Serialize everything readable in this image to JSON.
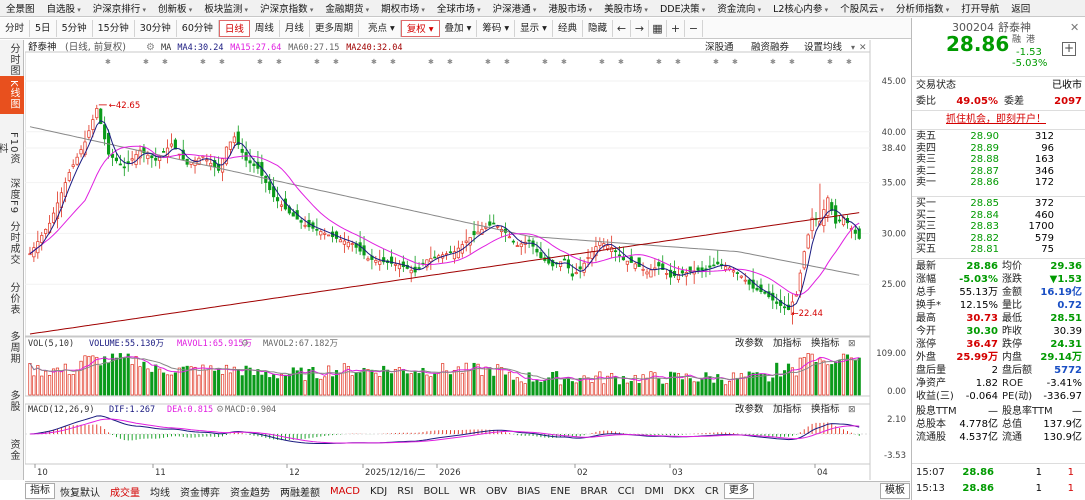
{
  "menu": [
    "全景图",
    "自选股",
    "沪深京排行",
    "创新板",
    "板块监测",
    "沪深京指数",
    "金融期货",
    "期权市场",
    "全球市场",
    "沪深港通",
    "港股市场",
    "美股市场",
    "DDE决策",
    "资金流向",
    "L2核心内参",
    "个股风云",
    "分析师指数",
    "打开导航",
    "返回"
  ],
  "toolbar": {
    "periods": [
      "分时",
      "5日",
      "5分钟",
      "15分钟",
      "30分钟",
      "60分钟",
      "日线",
      "周线",
      "月线",
      "更多周期"
    ],
    "active_period": "日线",
    "right_items": [
      "亮点",
      "复权",
      "叠加",
      "筹码",
      "显示",
      "经典",
      "隐藏"
    ],
    "active_right": "复权"
  },
  "left_tabs": [
    "分时图",
    "K线图",
    "F10资料",
    "深度F9",
    "分时成交",
    "分价表",
    "多周期",
    "多股",
    "资金"
  ],
  "chart_header": {
    "name": "舒泰神",
    "period_note": "(日线, 前复权)",
    "ma": [
      {
        "label": "MA",
        "value": "",
        "color": "#333333"
      },
      {
        "label": "MA4:",
        "value": "30.24",
        "color": "#1a1a80"
      },
      {
        "label": "MA15:",
        "value": "27.64",
        "color": "#e020e0"
      },
      {
        "label": "MA60:",
        "value": "27.15",
        "color": "#666666"
      },
      {
        "label": "MA240:",
        "value": "32.04",
        "color": "#a00000"
      }
    ],
    "buttons": [
      "深股通",
      "融资融券",
      "设置均线"
    ]
  },
  "price_axis": [
    "45.00",
    "40.00",
    "38.40",
    "35.00",
    "30.00",
    "25.00"
  ],
  "annotations": {
    "high": "42.65",
    "low": "22.44"
  },
  "vol": {
    "label": "VOL(5,10)",
    "volume_label": "VOLUME:",
    "volume_value": "55.130万",
    "mavol1_label": "MAVOL1:",
    "mavol1_value": "65.915万",
    "mavol2_label": "MAVOL2:",
    "mavol2_value": "67.182万",
    "buttons": [
      "改参数",
      "加指标",
      "换指标"
    ],
    "axis": [
      "109.00",
      "0.00"
    ]
  },
  "macd": {
    "label": "MACD(12,26,9)",
    "dif_label": "DIF:",
    "dif_value": "1.267",
    "dea_label": "DEA:",
    "dea_value": "0.815",
    "macd_label": "MACD:",
    "macd_value": "0.904",
    "buttons": [
      "改参数",
      "加指标",
      "换指标"
    ],
    "axis": [
      "2.10",
      "-3.53"
    ]
  },
  "date_axis": [
    "10",
    "11",
    "12",
    "2025/12/16/二",
    "2026",
    "02",
    "03",
    "04"
  ],
  "bottom_tabs": [
    "指标",
    "恢复默认",
    "成交量",
    "均线",
    "资金博弈",
    "资金趋势",
    "两融差额",
    "MACD",
    "KDJ",
    "RSI",
    "BOLL",
    "WR",
    "OBV",
    "BIAS",
    "ENE",
    "BRAR",
    "CCI",
    "DMI",
    "DKX",
    "CR",
    "更多",
    "模板"
  ],
  "active_bottom": [
    "成交量",
    "MACD"
  ],
  "stock": {
    "code": "300204",
    "name": "舒泰神",
    "tags": [
      "融",
      "港"
    ],
    "price": "28.86",
    "change": "-1.53",
    "pct": "-5.03%",
    "status_label": "交易状态",
    "status_value": "已收市",
    "weibi_label": "委比",
    "weibi": "49.05%",
    "weicha_label": "委差",
    "weicha": "2097",
    "promo": "抓住机会，即刻开户！"
  },
  "asks": [
    {
      "label": "卖五",
      "price": "28.90",
      "vol": "312"
    },
    {
      "label": "卖四",
      "price": "28.89",
      "vol": "96"
    },
    {
      "label": "卖三",
      "price": "28.88",
      "vol": "163"
    },
    {
      "label": "卖二",
      "price": "28.87",
      "vol": "346"
    },
    {
      "label": "卖一",
      "price": "28.86",
      "vol": "172"
    }
  ],
  "bids": [
    {
      "label": "买一",
      "price": "28.85",
      "vol": "372"
    },
    {
      "label": "买二",
      "price": "28.84",
      "vol": "460"
    },
    {
      "label": "买三",
      "price": "28.83",
      "vol": "1700"
    },
    {
      "label": "买四",
      "price": "28.82",
      "vol": "579"
    },
    {
      "label": "买五",
      "price": "28.81",
      "vol": "75"
    }
  ],
  "quote": [
    {
      "l1": "最新",
      "v1": "28.86",
      "c1": "green",
      "l2": "均价",
      "v2": "29.36",
      "c2": "green"
    },
    {
      "l1": "涨幅",
      "v1": "-5.03%",
      "c1": "green",
      "l2": "涨跌",
      "v2": "▼1.53",
      "c2": "green"
    },
    {
      "l1": "总手",
      "v1": "55.13万",
      "c1": "black",
      "l2": "金额",
      "v2": "16.19亿",
      "c2": "blue"
    },
    {
      "l1": "换手*",
      "v1": "12.15%",
      "c1": "black",
      "l2": "量比",
      "v2": "0.72",
      "c2": "blue"
    },
    {
      "l1": "最高",
      "v1": "30.73",
      "c1": "red",
      "l2": "最低",
      "v2": "28.51",
      "c2": "green"
    },
    {
      "l1": "今开",
      "v1": "30.30",
      "c1": "green",
      "l2": "昨收",
      "v2": "30.39",
      "c2": "black"
    },
    {
      "l1": "涨停",
      "v1": "36.47",
      "c1": "red",
      "l2": "跌停",
      "v2": "24.31",
      "c2": "green"
    },
    {
      "l1": "外盘",
      "v1": "25.99万",
      "c1": "red",
      "l2": "内盘",
      "v2": "29.14万",
      "c2": "green"
    },
    {
      "l1": "盘后量",
      "v1": "2",
      "c1": "black",
      "l2": "盘后额",
      "v2": "5772",
      "c2": "blue"
    },
    {
      "l1": "净资产",
      "v1": "1.82",
      "c1": "black",
      "l2": "ROE",
      "v2": "-3.41%",
      "c2": "black"
    },
    {
      "l1": "收益(三)",
      "v1": "-0.064",
      "c1": "black",
      "l2": "PE(动)",
      "v2": "-336.97",
      "c2": "black"
    },
    {
      "l1": "股息TTM",
      "v1": "—",
      "c1": "black",
      "l2": "股息率TTM",
      "v2": "—",
      "c2": "black"
    },
    {
      "l1": "总股本",
      "v1": "4.778亿",
      "c1": "black",
      "l2": "总值",
      "v2": "137.9亿",
      "c2": "black"
    },
    {
      "l1": "流通股",
      "v1": "4.537亿",
      "c1": "black",
      "l2": "流通",
      "v2": "130.9亿",
      "c2": "black"
    }
  ],
  "ticks": [
    {
      "time": "15:07",
      "price": "28.86",
      "vol": "1",
      "n": "1"
    },
    {
      "time": "15:13",
      "price": "28.86",
      "vol": "1",
      "n": "1"
    }
  ]
}
